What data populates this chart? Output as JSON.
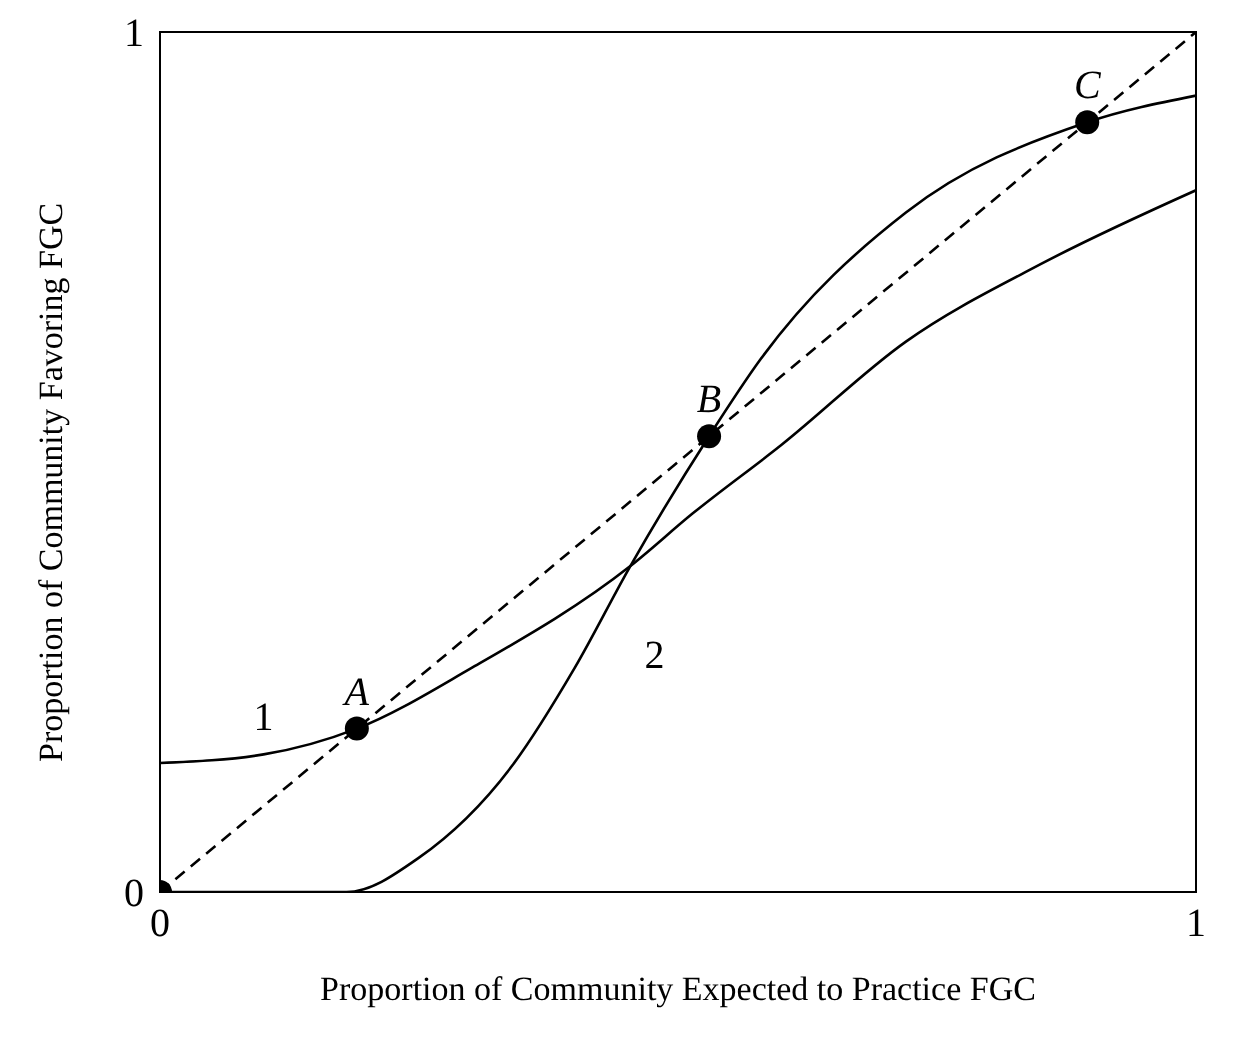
{
  "chart_data": {
    "type": "line",
    "xlabel": "Proportion of Community Expected to Practice FGC",
    "ylabel": "Proportion of Community Favoring FGC",
    "xlim": [
      0,
      1
    ],
    "ylim": [
      0,
      1
    ],
    "xticks": [
      0,
      1
    ],
    "yticks": [
      0,
      1
    ],
    "legend": false,
    "marker": "none",
    "series": [
      {
        "name": "1",
        "color": "#000000",
        "x": [
          0,
          0.1,
          0.19,
          0.3,
          0.454,
          0.514,
          0.6,
          0.72,
          0.85,
          1
        ],
        "values": [
          0.15,
          0.16,
          0.19,
          0.26,
          0.379,
          0.44,
          0.52,
          0.64,
          0.73,
          0.816
        ]
      },
      {
        "name": "2",
        "color": "#000000",
        "x": [
          0,
          0.18,
          0.25,
          0.34,
          0.4,
          0.454,
          0.53,
          0.58,
          0.72,
          0.895,
          1
        ],
        "values": [
          0,
          0,
          0.04,
          0.147,
          0.26,
          0.379,
          0.53,
          0.62,
          0.79,
          0.895,
          0.926
        ]
      },
      {
        "color": "#000000",
        "line_style": "dashed",
        "x": [
          0,
          1
        ],
        "values": [
          0,
          1
        ]
      },
      {
        "type": "scatter",
        "marker": "circle",
        "color": "#000000",
        "x": [
          0,
          0.19,
          0.53,
          0.895
        ],
        "values": [
          0,
          0.19,
          0.53,
          0.895
        ]
      }
    ],
    "annotations": [
      {
        "text": "A",
        "x": 0.19,
        "y": 0.19
      },
      {
        "text": "B",
        "x": 0.53,
        "y": 0.53
      },
      {
        "text": "C",
        "x": 0.895,
        "y": 0.895
      }
    ]
  }
}
